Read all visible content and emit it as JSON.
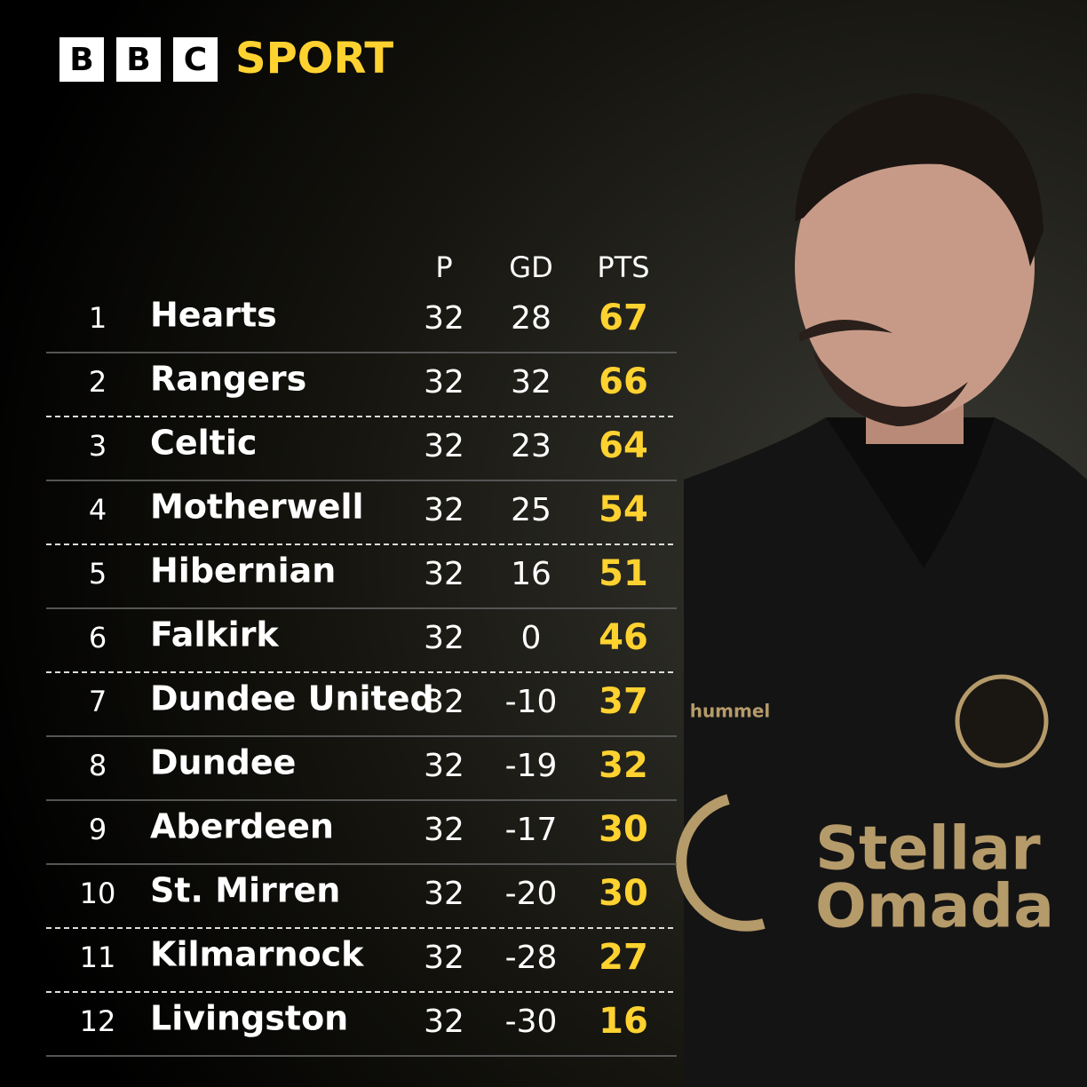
{
  "header": {
    "logo": [
      "B",
      "B",
      "C"
    ],
    "title": "SPORT"
  },
  "table": {
    "columns": [
      "P",
      "GD",
      "PTS"
    ],
    "rows": [
      [
        1,
        "Hearts",
        32,
        28,
        67
      ],
      [
        2,
        "Rangers",
        32,
        32,
        66
      ],
      [
        3,
        "Celtic",
        32,
        23,
        64
      ],
      [
        4,
        "Motherwell",
        32,
        25,
        54
      ],
      [
        5,
        "Hibernian",
        32,
        16,
        51
      ],
      [
        6,
        "Falkirk",
        32,
        0,
        46
      ],
      [
        7,
        "Dundee United",
        32,
        -10,
        37
      ],
      [
        8,
        "Dundee",
        32,
        -19,
        32
      ],
      [
        9,
        "Aberdeen",
        32,
        -17,
        30
      ],
      [
        10,
        "St. Mirren",
        32,
        -20,
        30
      ],
      [
        11,
        "Kilmarnock",
        32,
        -28,
        27
      ],
      [
        12,
        "Livingston",
        32,
        -30,
        16
      ]
    ]
  },
  "shirt": {
    "brand": "hummel",
    "sponsor": [
      "Stellar",
      "Omada"
    ]
  }
}
